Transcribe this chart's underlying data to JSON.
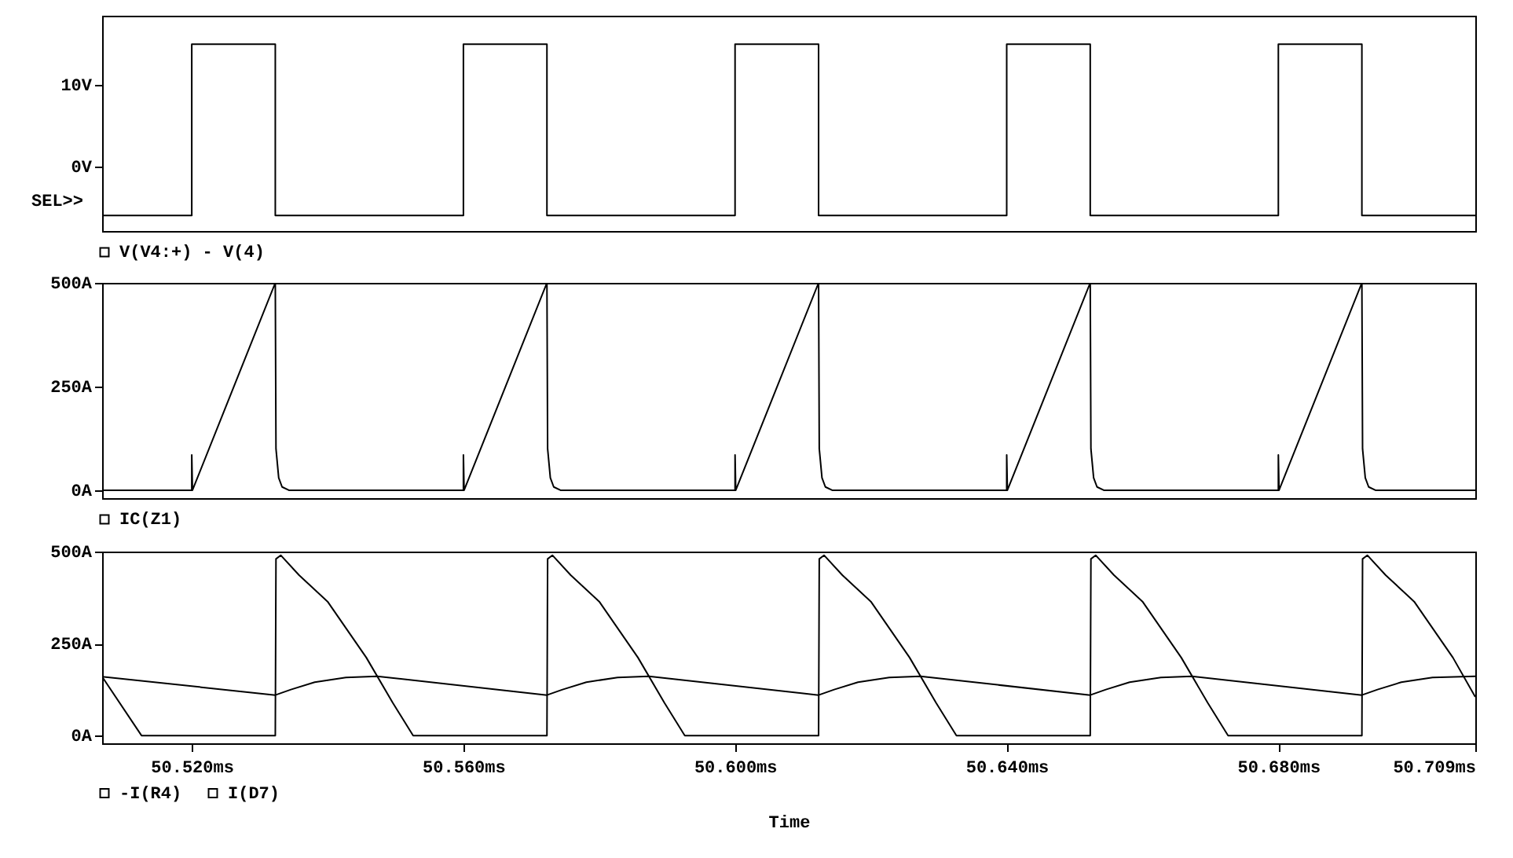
{
  "chart_data": [
    {
      "type": "line",
      "annotations": [
        "SEL>>"
      ],
      "legend": "bottom",
      "tick_labels": "y",
      "xlim": [
        50.5068,
        50.709
      ],
      "ylim": [
        -7.9,
        18.5
      ],
      "yticks": [
        {
          "value": 0,
          "label": "0V"
        },
        {
          "value": 10,
          "label": "10V"
        }
      ],
      "series": [
        {
          "name": "V(V4:+) - V(4)",
          "color": "#000000",
          "x": [
            50.5068,
            50.52,
            50.52,
            50.5323,
            50.5323,
            50.56,
            50.56,
            50.5723,
            50.5723,
            50.6,
            50.6,
            50.6123,
            50.6123,
            50.64,
            50.64,
            50.6523,
            50.6523,
            50.68,
            50.68,
            50.6923,
            50.6923,
            50.709
          ],
          "values": [
            -6,
            -6,
            15,
            15,
            -6,
            -6,
            15,
            15,
            -6,
            -6,
            15,
            15,
            -6,
            -6,
            15,
            15,
            -6,
            -6,
            15,
            15,
            -6,
            -6
          ]
        }
      ]
    },
    {
      "type": "line",
      "legend": "bottom",
      "tick_labels": "y",
      "xlim": [
        50.5068,
        50.709
      ],
      "ylim": [
        -19,
        500
      ],
      "yticks": [
        {
          "value": 0,
          "label": "0A"
        },
        {
          "value": 250,
          "label": "250A"
        },
        {
          "value": 500,
          "label": "500A"
        }
      ],
      "series": [
        {
          "name": "IC(Z1)",
          "color": "#000000",
          "x": [
            50.5068,
            50.52,
            50.52,
            50.5201,
            50.5323,
            50.5324,
            50.5328,
            50.5333,
            50.5343,
            50.56,
            50.56,
            50.5601,
            50.5723,
            50.5724,
            50.5728,
            50.5733,
            50.5743,
            50.6,
            50.6,
            50.6001,
            50.6123,
            50.6124,
            50.6128,
            50.6133,
            50.6143,
            50.64,
            50.64,
            50.6401,
            50.6523,
            50.6524,
            50.6528,
            50.6533,
            50.6543,
            50.68,
            50.68,
            50.6801,
            50.6923,
            50.6924,
            50.6928,
            50.6933,
            50.6943,
            50.709
          ],
          "values": [
            0,
            0,
            85,
            0,
            500,
            100,
            30,
            8,
            0,
            0,
            85,
            0,
            500,
            100,
            30,
            8,
            0,
            0,
            85,
            0,
            500,
            100,
            30,
            8,
            0,
            0,
            85,
            0,
            500,
            100,
            30,
            8,
            0,
            0,
            85,
            0,
            500,
            100,
            30,
            8,
            0,
            0
          ]
        }
      ]
    },
    {
      "type": "line",
      "legend": "bottom",
      "xlabel": "Time",
      "xlim": [
        50.5068,
        50.709
      ],
      "xticks": [
        {
          "value": 50.52,
          "label": "50.520ms"
        },
        {
          "value": 50.56,
          "label": "50.560ms"
        },
        {
          "value": 50.6,
          "label": "50.600ms"
        },
        {
          "value": 50.64,
          "label": "50.640ms"
        },
        {
          "value": 50.68,
          "label": "50.680ms"
        },
        {
          "value": 50.709,
          "label": "50.709ms"
        }
      ],
      "ylim": [
        -21,
        500
      ],
      "yticks": [
        {
          "value": 0,
          "label": "0A"
        },
        {
          "value": 250,
          "label": "250A"
        },
        {
          "value": 500,
          "label": "500A"
        }
      ],
      "series": [
        {
          "name": "-I(R4)",
          "color": "#000000",
          "x": [
            50.5068,
            50.5126,
            50.5323,
            50.5324,
            50.5331,
            50.5358,
            50.54,
            50.5457,
            50.5496,
            50.5526,
            50.5723,
            50.5724,
            50.5731,
            50.5758,
            50.58,
            50.5857,
            50.5896,
            50.5926,
            50.6123,
            50.6124,
            50.6131,
            50.6158,
            50.62,
            50.6257,
            50.6296,
            50.6326,
            50.6523,
            50.6524,
            50.6531,
            50.6558,
            50.66,
            50.6657,
            50.6696,
            50.6726,
            50.6923,
            50.6924,
            50.6931,
            50.6958,
            50.7,
            50.7057,
            50.709
          ],
          "values": [
            160,
            0,
            0,
            480,
            490,
            436,
            364,
            212,
            89,
            0,
            0,
            480,
            490,
            436,
            364,
            212,
            89,
            0,
            0,
            480,
            490,
            436,
            364,
            212,
            89,
            0,
            0,
            480,
            490,
            436,
            364,
            212,
            89,
            0,
            0,
            480,
            490,
            436,
            364,
            212,
            105
          ]
        },
        {
          "name": "I(D7)",
          "color": "#000000",
          "x": [
            50.5068,
            50.5323,
            50.5346,
            50.5381,
            50.5427,
            50.5473,
            50.5723,
            50.5746,
            50.5781,
            50.5827,
            50.5873,
            50.6123,
            50.6146,
            50.6181,
            50.6227,
            50.6273,
            50.6523,
            50.6546,
            50.6581,
            50.6627,
            50.6673,
            50.6923,
            50.6946,
            50.6981,
            50.7027,
            50.709
          ],
          "values": [
            160,
            110,
            125,
            145,
            158,
            161,
            110,
            125,
            145,
            158,
            161,
            110,
            125,
            145,
            158,
            161,
            110,
            125,
            145,
            158,
            161,
            110,
            125,
            145,
            158,
            161
          ]
        }
      ]
    }
  ]
}
